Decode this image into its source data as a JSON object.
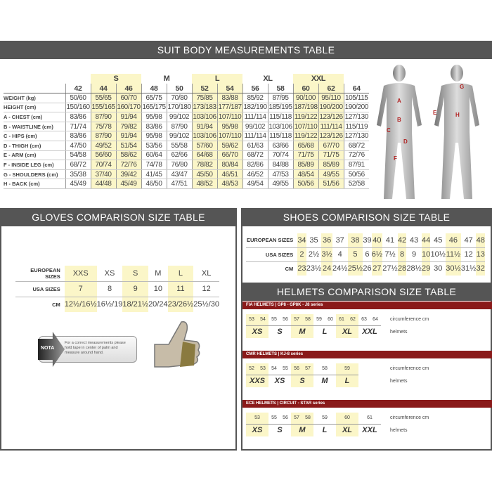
{
  "suit": {
    "title": "SUIT BODY MEASUREMENTS TABLE",
    "groups": [
      {
        "label": "",
        "span": 1
      },
      {
        "label": "S",
        "span": 2,
        "hl": true
      },
      {
        "label": "M",
        "span": 2
      },
      {
        "label": "L",
        "span": 2,
        "hl": true
      },
      {
        "label": "XL",
        "span": 2
      },
      {
        "label": "XXL",
        "span": 2,
        "hl": true
      },
      {
        "label": "",
        "span": 1
      }
    ],
    "sizes": [
      "42",
      "44",
      "46",
      "48",
      "50",
      "52",
      "54",
      "56",
      "58",
      "60",
      "62",
      "64"
    ],
    "highlight_cols": [
      1,
      2,
      5,
      6,
      9,
      10
    ],
    "rows": [
      {
        "label": "WEIGHT (kg)",
        "values": [
          "50/60",
          "55/65",
          "60/70",
          "65/75",
          "70/80",
          "75/85",
          "83/88",
          "85/92",
          "87/95",
          "90/100",
          "95/110",
          "105/115"
        ]
      },
      {
        "label": "HEIGHT (cm)",
        "values": [
          "150/160",
          "155/165",
          "160/170",
          "165/175",
          "170/180",
          "173/183",
          "177/187",
          "182/190",
          "185/195",
          "187/198",
          "190/200",
          "190/200"
        ]
      },
      {
        "label": "A - CHEST (cm)",
        "values": [
          "83/86",
          "87/90",
          "91/94",
          "95/98",
          "99/102",
          "103/106",
          "107/110",
          "111/114",
          "115/118",
          "119/122",
          "123/126",
          "127/130"
        ]
      },
      {
        "label": "B - WAISTLINE (cm)",
        "values": [
          "71/74",
          "75/78",
          "79/82",
          "83/86",
          "87/90",
          "91/94",
          "95/98",
          "99/102",
          "103/106",
          "107/110",
          "111/114",
          "115/119"
        ]
      },
      {
        "label": "C - HIPS (cm)",
        "values": [
          "83/86",
          "87/90",
          "91/94",
          "95/98",
          "99/102",
          "103/106",
          "107/110",
          "111/114",
          "115/118",
          "119/122",
          "123/126",
          "127/130"
        ]
      },
      {
        "label": "D - THIGH (cm)",
        "values": [
          "47/50",
          "49/52",
          "51/54",
          "53/56",
          "55/58",
          "57/60",
          "59/62",
          "61/63",
          "63/66",
          "65/68",
          "67/70",
          "68/72"
        ]
      },
      {
        "label": "E - ARM (cm)",
        "values": [
          "54/58",
          "56/60",
          "58/62",
          "60/64",
          "62/66",
          "64/68",
          "66/70",
          "68/72",
          "70/74",
          "71/75",
          "71/75",
          "72/76"
        ]
      },
      {
        "label": "F - INSIDE LEG (cm)",
        "values": [
          "68/72",
          "70/74",
          "72/76",
          "74/78",
          "76/80",
          "78/82",
          "80/84",
          "82/86",
          "84/88",
          "85/89",
          "85/89",
          "87/91"
        ]
      },
      {
        "label": "G - SHOULDERS (cm)",
        "values": [
          "35/38",
          "37/40",
          "39/42",
          "41/45",
          "43/47",
          "45/50",
          "46/51",
          "46/52",
          "47/53",
          "48/54",
          "49/55",
          "50/56"
        ]
      },
      {
        "label": "H - BACK (cm)",
        "values": [
          "45/49",
          "44/48",
          "45/49",
          "46/50",
          "47/51",
          "48/52",
          "48/53",
          "49/54",
          "49/55",
          "50/56",
          "51/56",
          "52/58"
        ]
      }
    ],
    "figure_letters": [
      "A",
      "B",
      "C",
      "D",
      "E",
      "F",
      "G",
      "H"
    ]
  },
  "gloves": {
    "title": "GLOVES COMPARISON SIZE TABLE",
    "rows": [
      {
        "label": "EUROPEAN SIZES",
        "values": [
          "XXS",
          "XS",
          "S",
          "M",
          "L",
          "XL"
        ]
      },
      {
        "label": "USA SIZES",
        "values": [
          "7",
          "8",
          "9",
          "10",
          "11",
          "12"
        ]
      },
      {
        "label": "CM",
        "values": [
          "12½/16½",
          "16½/19",
          "18/21½",
          "20/24",
          "23/26½",
          "25½/30"
        ]
      }
    ],
    "highlight_cols": [
      0,
      2,
      4
    ],
    "note_tag": "NOTA",
    "note": "For a correct measurements please hold tape in center of palm and measure around hand."
  },
  "shoes": {
    "title": "SHOES COMPARISON SIZE TABLE",
    "rows": [
      {
        "label": "EUROPEAN SIZES",
        "values": [
          "34",
          "35",
          "36",
          "37",
          "38",
          "39",
          "40",
          "41",
          "42",
          "43",
          "44",
          "45",
          "46",
          "47",
          "48"
        ]
      },
      {
        "label": "USA SIZES",
        "values": [
          "2",
          "2½",
          "3½",
          "4",
          "5",
          "6",
          "6½",
          "7½",
          "8",
          "9",
          "10",
          "10½",
          "11½",
          "12",
          "13"
        ]
      },
      {
        "label": "CM",
        "values": [
          "23",
          "23½",
          "24",
          "24½",
          "25½",
          "26",
          "27",
          "27½",
          "28",
          "28½",
          "29",
          "30",
          "30½",
          "31½",
          "32"
        ]
      }
    ],
    "highlight_cols": [
      0,
      2,
      4,
      6,
      8,
      10,
      12,
      14
    ]
  },
  "helmets": {
    "title": "HELMETS COMPARISON SIZE TABLE",
    "circ_label": "circumference cm",
    "helmets_label": "helmets",
    "accent": "#8a1a1a",
    "series": [
      {
        "title": "FIA HELMETS | GP8 - GP8K - J8 series",
        "groups": [
          {
            "cm": [
              "53",
              "54"
            ],
            "size": "XS",
            "hl": true
          },
          {
            "cm": [
              "55",
              "56"
            ],
            "size": "S"
          },
          {
            "cm": [
              "57",
              "58"
            ],
            "size": "M",
            "hl": true
          },
          {
            "cm": [
              "59",
              "60"
            ],
            "size": "L"
          },
          {
            "cm": [
              "61",
              "62"
            ],
            "size": "XL",
            "hl": true
          },
          {
            "cm": [
              "63",
              "64"
            ],
            "size": "XXL"
          }
        ]
      },
      {
        "title": "CMR HELMETS | KJ-8 series",
        "groups": [
          {
            "cm": [
              "52",
              "53"
            ],
            "size": "XXS",
            "hl": true
          },
          {
            "cm": [
              "54",
              "55"
            ],
            "size": "XS"
          },
          {
            "cm": [
              "56",
              "57"
            ],
            "size": "S",
            "hl": true
          },
          {
            "cm": [
              "58"
            ],
            "size": "M"
          },
          {
            "cm": [
              "59"
            ],
            "size": "L",
            "hl": true
          }
        ]
      },
      {
        "title": "ECE HELMETS | CIRCUIT - STAR series",
        "groups": [
          {
            "cm": [
              "53"
            ],
            "size": "XS",
            "hl": true
          },
          {
            "cm": [
              "55",
              "56"
            ],
            "size": "S"
          },
          {
            "cm": [
              "57",
              "58"
            ],
            "size": "M",
            "hl": true
          },
          {
            "cm": [
              "59"
            ],
            "size": "L"
          },
          {
            "cm": [
              "60"
            ],
            "size": "XL",
            "hl": true
          },
          {
            "cm": [
              "61"
            ],
            "size": "XXL"
          }
        ]
      }
    ]
  }
}
